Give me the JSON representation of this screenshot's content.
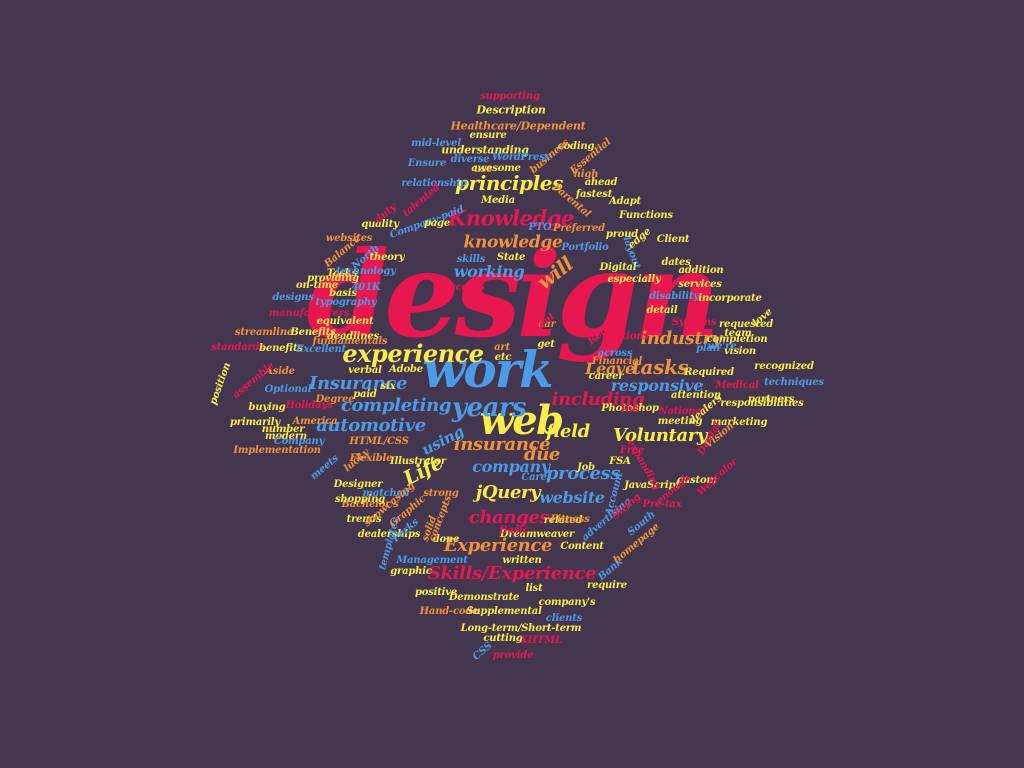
{
  "palette": {
    "background": "#45364f",
    "red": "#e8174f",
    "blue": "#4b9be6",
    "yellow": "#f7ee4a",
    "orange": "#f0933a"
  },
  "words": [
    {
      "text": "design",
      "color": "red"
    },
    {
      "text": "work",
      "color": "blue"
    },
    {
      "text": "web",
      "color": "yellow"
    },
    {
      "text": "experience",
      "color": "yellow"
    },
    {
      "text": "years",
      "color": "blue"
    },
    {
      "text": "Knowledge",
      "color": "red"
    },
    {
      "text": "principles",
      "color": "yellow"
    },
    {
      "text": "knowledge",
      "color": "orange"
    },
    {
      "text": "working",
      "color": "blue"
    },
    {
      "text": "will",
      "color": "orange"
    },
    {
      "text": "industry",
      "color": "orange"
    },
    {
      "text": "Leave",
      "color": "orange"
    },
    {
      "text": "tasks",
      "color": "orange"
    },
    {
      "text": "responsive",
      "color": "blue"
    },
    {
      "text": "including",
      "color": "red"
    },
    {
      "text": "field",
      "color": "yellow"
    },
    {
      "text": "Voluntary",
      "color": "yellow"
    },
    {
      "text": "Insurance",
      "color": "blue"
    },
    {
      "text": "completing",
      "color": "blue"
    },
    {
      "text": "automotive",
      "color": "blue"
    },
    {
      "text": "insurance",
      "color": "orange"
    },
    {
      "text": "using",
      "color": "blue"
    },
    {
      "text": "due",
      "color": "orange"
    },
    {
      "text": "Life",
      "color": "yellow"
    },
    {
      "text": "company",
      "color": "blue"
    },
    {
      "text": "process",
      "color": "blue"
    },
    {
      "text": "jQuery",
      "color": "yellow"
    },
    {
      "text": "website",
      "color": "blue"
    },
    {
      "text": "changes",
      "color": "red"
    },
    {
      "text": "Experience",
      "color": "orange"
    },
    {
      "text": "Skills/Experience",
      "color": "red"
    },
    {
      "text": "Description",
      "color": "yellow"
    },
    {
      "text": "supporting",
      "color": "red"
    },
    {
      "text": "Healthcare/Dependent",
      "color": "orange"
    },
    {
      "text": "ensure",
      "color": "yellow"
    },
    {
      "text": "coding",
      "color": "yellow"
    },
    {
      "text": "mid-level",
      "color": "blue"
    },
    {
      "text": "understanding",
      "color": "yellow"
    },
    {
      "text": "diverse",
      "color": "blue"
    },
    {
      "text": "business",
      "color": "orange"
    },
    {
      "text": "Essential",
      "color": "orange"
    },
    {
      "text": "use",
      "color": "orange"
    },
    {
      "text": "WordPress",
      "color": "blue"
    },
    {
      "text": "Ensure",
      "color": "blue"
    },
    {
      "text": "awesome",
      "color": "yellow"
    },
    {
      "text": "high",
      "color": "orange"
    },
    {
      "text": "relationship",
      "color": "blue"
    },
    {
      "text": "talented",
      "color": "red"
    },
    {
      "text": "ahead",
      "color": "yellow"
    },
    {
      "text": "fastest",
      "color": "yellow"
    },
    {
      "text": "Parental",
      "color": "orange"
    },
    {
      "text": "Media",
      "color": "yellow"
    },
    {
      "text": "Adapt",
      "color": "yellow"
    },
    {
      "text": "Company-paid",
      "color": "blue"
    },
    {
      "text": "PTO",
      "color": "blue"
    },
    {
      "text": "Functions",
      "color": "yellow"
    },
    {
      "text": "quality",
      "color": "yellow"
    },
    {
      "text": "page",
      "color": "yellow"
    },
    {
      "text": "Preferred",
      "color": "orange"
    },
    {
      "text": "proud",
      "color": "yellow"
    },
    {
      "text": "Client",
      "color": "yellow"
    },
    {
      "text": "websites",
      "color": "orange"
    },
    {
      "text": "North",
      "color": "blue"
    },
    {
      "text": "Portfolio",
      "color": "blue"
    },
    {
      "text": "layout",
      "color": "blue"
    },
    {
      "text": "edge",
      "color": "yellow"
    },
    {
      "text": "Balance",
      "color": "orange"
    },
    {
      "text": "theory",
      "color": "yellow"
    },
    {
      "text": "skills",
      "color": "blue"
    },
    {
      "text": "State",
      "color": "yellow"
    },
    {
      "text": "Digital",
      "color": "yellow"
    },
    {
      "text": "dates",
      "color": "yellow"
    },
    {
      "text": "Tasks",
      "color": "yellow"
    },
    {
      "text": "technology",
      "color": "blue"
    },
    {
      "text": "addition",
      "color": "yellow"
    },
    {
      "text": "especially",
      "color": "yellow"
    },
    {
      "text": "services",
      "color": "yellow"
    },
    {
      "text": "on-time",
      "color": "yellow"
    },
    {
      "text": "providing",
      "color": "yellow"
    },
    {
      "text": "401K",
      "color": "blue"
    },
    {
      "text": "designs",
      "color": "blue"
    },
    {
      "text": "basis",
      "color": "yellow"
    },
    {
      "text": "typography",
      "color": "blue"
    },
    {
      "text": "disability",
      "color": "blue"
    },
    {
      "text": "incorporate",
      "color": "yellow"
    },
    {
      "text": "streamline",
      "color": "orange"
    },
    {
      "text": "Benefits",
      "color": "yellow"
    },
    {
      "text": "equivalent",
      "color": "yellow"
    },
    {
      "text": "deadlines",
      "color": "yellow"
    },
    {
      "text": "detail",
      "color": "yellow"
    },
    {
      "text": "requested",
      "color": "yellow"
    },
    {
      "text": "completion",
      "color": "yellow"
    },
    {
      "text": "standards",
      "color": "red"
    },
    {
      "text": "benefits",
      "color": "yellow"
    },
    {
      "text": "Excellent",
      "color": "blue"
    },
    {
      "text": "art",
      "color": "orange"
    },
    {
      "text": "get",
      "color": "yellow"
    },
    {
      "text": "etc",
      "color": "yellow"
    },
    {
      "text": "across",
      "color": "blue"
    },
    {
      "text": "plan",
      "color": "blue"
    },
    {
      "text": "vision",
      "color": "yellow"
    },
    {
      "text": "recognized",
      "color": "yellow"
    },
    {
      "text": "verbal",
      "color": "yellow"
    },
    {
      "text": "Adobe",
      "color": "yellow"
    },
    {
      "text": "career",
      "color": "yellow"
    },
    {
      "text": "Required",
      "color": "yellow"
    },
    {
      "text": "techniques",
      "color": "blue"
    },
    {
      "text": "Optional",
      "color": "blue"
    },
    {
      "text": "buying",
      "color": "yellow"
    },
    {
      "text": "six",
      "color": "yellow"
    },
    {
      "text": "paid",
      "color": "yellow"
    },
    {
      "text": "attention",
      "color": "yellow"
    },
    {
      "text": "Photoshop",
      "color": "yellow"
    },
    {
      "text": "meeting",
      "color": "yellow"
    },
    {
      "text": "partners",
      "color": "yellow"
    },
    {
      "text": "marketing",
      "color": "yellow"
    },
    {
      "text": "primarily",
      "color": "yellow"
    },
    {
      "text": "number",
      "color": "yellow"
    },
    {
      "text": "America",
      "color": "orange"
    },
    {
      "text": "HTML/CSS",
      "color": "orange"
    },
    {
      "text": "modern",
      "color": "yellow"
    },
    {
      "text": "Company",
      "color": "blue"
    },
    {
      "text": "Implementation",
      "color": "orange"
    },
    {
      "text": "Flexible",
      "color": "orange"
    },
    {
      "text": "Illustrator",
      "color": "yellow"
    },
    {
      "text": "Job",
      "color": "yellow"
    },
    {
      "text": "FSA",
      "color": "yellow"
    },
    {
      "text": "JavaScript",
      "color": "yellow"
    },
    {
      "text": "custom",
      "color": "yellow"
    },
    {
      "text": "Designer",
      "color": "yellow"
    },
    {
      "text": "Bachelor's",
      "color": "orange"
    },
    {
      "text": "Care",
      "color": "blue"
    },
    {
      "text": "matched",
      "color": "blue"
    },
    {
      "text": "strong",
      "color": "orange"
    },
    {
      "text": "trends",
      "color": "yellow"
    },
    {
      "text": "related",
      "color": "yellow"
    },
    {
      "text": "dealerships",
      "color": "yellow"
    },
    {
      "text": "Dreamweaver",
      "color": "yellow"
    },
    {
      "text": "done",
      "color": "yellow"
    },
    {
      "text": "Content",
      "color": "yellow"
    },
    {
      "text": "Management",
      "color": "blue"
    },
    {
      "text": "written",
      "color": "yellow"
    },
    {
      "text": "positive",
      "color": "yellow"
    },
    {
      "text": "require",
      "color": "yellow"
    },
    {
      "text": "Demonstrate",
      "color": "yellow"
    },
    {
      "text": "list",
      "color": "yellow"
    },
    {
      "text": "Hand-code",
      "color": "orange"
    },
    {
      "text": "Supplemental",
      "color": "yellow"
    },
    {
      "text": "company's",
      "color": "yellow"
    },
    {
      "text": "clients",
      "color": "blue"
    },
    {
      "text": "Long-term/Short-term",
      "color": "yellow"
    },
    {
      "text": "cutting",
      "color": "yellow"
    },
    {
      "text": "XHTML",
      "color": "red"
    },
    {
      "text": "CSS",
      "color": "blue"
    },
    {
      "text": "provide",
      "color": "red"
    },
    {
      "text": "templates",
      "color": "blue"
    },
    {
      "text": "Account",
      "color": "blue"
    },
    {
      "text": "South",
      "color": "blue"
    },
    {
      "text": "Bank",
      "color": "blue"
    },
    {
      "text": "homepage",
      "color": "orange"
    },
    {
      "text": "graphic",
      "color": "yellow"
    },
    {
      "text": "showcasing",
      "color": "orange"
    },
    {
      "text": "Graphic",
      "color": "orange"
    },
    {
      "text": "manufacturers",
      "color": "red"
    },
    {
      "text": "position",
      "color": "yellow"
    },
    {
      "text": "Aside",
      "color": "orange"
    },
    {
      "text": "assemble",
      "color": "red"
    },
    {
      "text": "lucky",
      "color": "orange"
    },
    {
      "text": "love",
      "color": "yellow"
    },
    {
      "text": "team",
      "color": "yellow"
    },
    {
      "text": "car",
      "color": "orange"
    },
    {
      "text": "Systems",
      "color": "red"
    },
    {
      "text": "we're",
      "color": "blue"
    },
    {
      "text": "Medical",
      "color": "red"
    },
    {
      "text": "responsibilities",
      "color": "yellow"
    },
    {
      "text": "National",
      "color": "red"
    },
    {
      "text": "Dental",
      "color": "red"
    },
    {
      "text": "meets",
      "color": "blue"
    },
    {
      "text": "Holidays",
      "color": "red"
    },
    {
      "text": "Degree",
      "color": "orange"
    },
    {
      "text": "concepts",
      "color": "orange"
    },
    {
      "text": "Perks",
      "color": "blue"
    },
    {
      "text": "solid",
      "color": "orange"
    },
    {
      "text": "shopping",
      "color": "yellow"
    },
    {
      "text": "fundamentals",
      "color": "orange"
    },
    {
      "text": "expanding",
      "color": "red"
    },
    {
      "text": "Vision",
      "color": "orange"
    },
    {
      "text": "color",
      "color": "red"
    },
    {
      "text": "Success",
      "color": "red"
    },
    {
      "text": "Remote",
      "color": "red"
    },
    {
      "text": "Free",
      "color": "red"
    },
    {
      "text": "Fitness",
      "color": "orange"
    },
    {
      "text": "Pre-tax",
      "color": "red"
    },
    {
      "text": "dealers",
      "color": "yellow"
    },
    {
      "text": "Web",
      "color": "red"
    },
    {
      "text": "enough",
      "color": "red"
    },
    {
      "text": "advertising",
      "color": "blue"
    },
    {
      "text": "Basic",
      "color": "red"
    },
    {
      "text": "Sizing",
      "color": "red"
    },
    {
      "text": "duty",
      "color": "red"
    },
    {
      "text": "Functions",
      "color": "red"
    },
    {
      "text": "Financial",
      "color": "orange"
    },
    {
      "text": "sent",
      "color": "red"
    },
    {
      "text": "Ink",
      "color": "red"
    }
  ]
}
